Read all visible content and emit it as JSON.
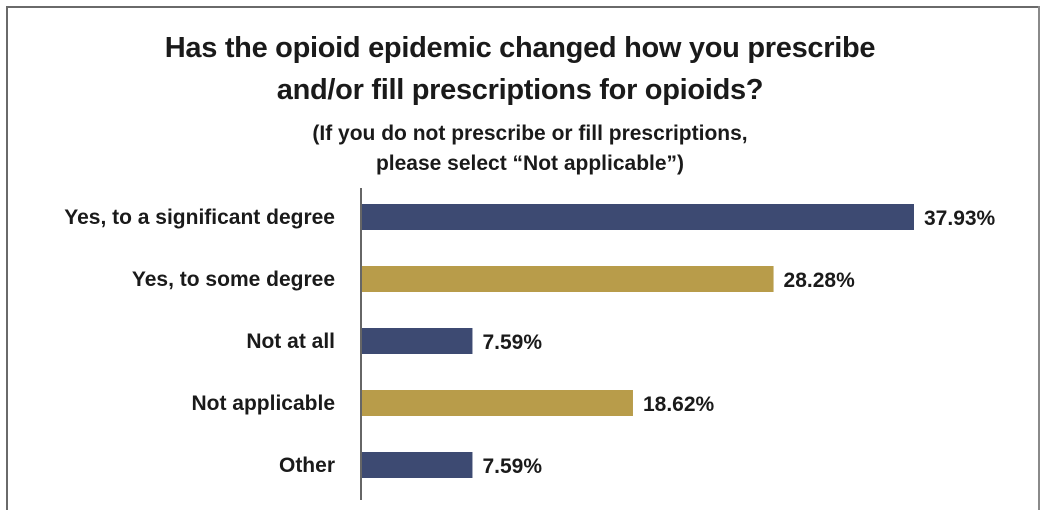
{
  "colors": {
    "navy": "#3d4a72",
    "gold": "#b89c4a",
    "axis": "#333333"
  },
  "chart_data": {
    "type": "bar",
    "orientation": "horizontal",
    "title_line1": "Has the opioid epidemic changed how you prescribe",
    "title_line2": "and/or fill prescriptions for opioids?",
    "subtitle_line1": "(If you do not prescribe or fill prescriptions,",
    "subtitle_line2": "please select “Not applicable”)",
    "categories": [
      "Yes, to a significant degree",
      "Yes, to some degree",
      "Not at all",
      "Not applicable",
      "Other"
    ],
    "values": [
      37.93,
      28.28,
      7.59,
      18.62,
      7.59
    ],
    "value_labels": [
      "37.93%",
      "28.28%",
      "7.59%",
      "18.62%",
      "7.59%"
    ],
    "bar_colors": [
      "#3d4a72",
      "#b89c4a",
      "#3d4a72",
      "#b89c4a",
      "#3d4a72"
    ],
    "xlim": [
      0,
      37.93
    ],
    "grid": false,
    "legend": "none"
  }
}
